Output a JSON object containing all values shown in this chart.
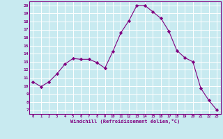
{
  "x": [
    0,
    1,
    2,
    3,
    4,
    5,
    6,
    7,
    8,
    9,
    10,
    11,
    12,
    13,
    14,
    15,
    16,
    17,
    18,
    19,
    20,
    21,
    22,
    23
  ],
  "y": [
    10.5,
    9.9,
    10.5,
    11.5,
    12.7,
    13.4,
    13.3,
    13.3,
    12.9,
    12.2,
    14.3,
    16.6,
    18.1,
    20.0,
    20.0,
    19.2,
    18.4,
    16.8,
    14.4,
    13.5,
    13.0,
    9.7,
    8.2,
    7.0
  ],
  "line_color": "#800080",
  "marker": "D",
  "marker_size": 2.2,
  "bg_color": "#c8eaf0",
  "grid_color": "#ffffff",
  "xlabel": "Windchill (Refroidissement éolien,°C)",
  "xlabel_color": "#800080",
  "tick_color": "#800080",
  "xlim": [
    -0.5,
    23.5
  ],
  "ylim": [
    6.5,
    20.5
  ],
  "yticks": [
    7,
    8,
    9,
    10,
    11,
    12,
    13,
    14,
    15,
    16,
    17,
    18,
    19,
    20
  ],
  "xticks": [
    0,
    1,
    2,
    3,
    4,
    5,
    6,
    7,
    8,
    9,
    10,
    11,
    12,
    13,
    14,
    15,
    16,
    17,
    18,
    19,
    20,
    21,
    22,
    23
  ],
  "spine_color": "#800080",
  "linewidth": 0.8
}
